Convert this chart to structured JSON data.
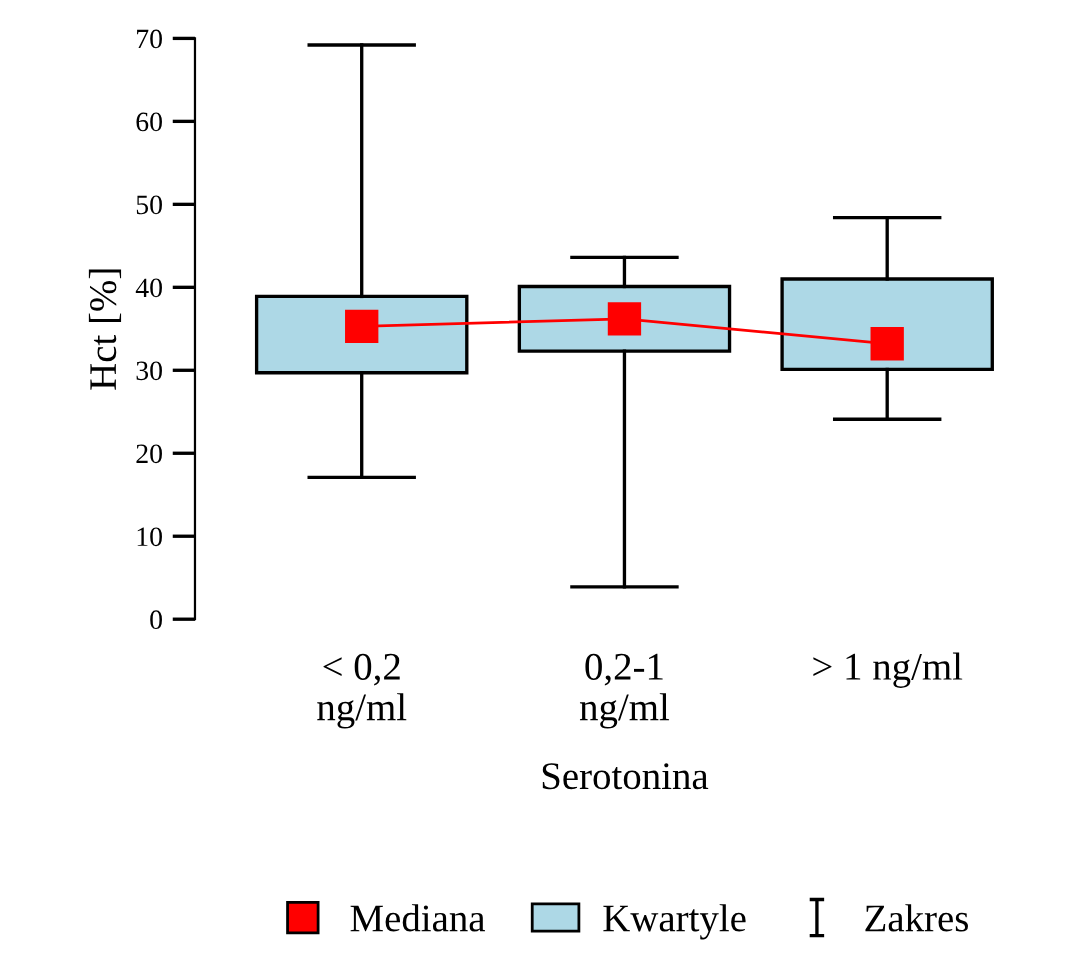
{
  "chart_data": {
    "type": "box",
    "xlabel": "Serotonina",
    "ylabel": "Hct [%]",
    "categories": [
      "< 0,2\nng/ml",
      "0,2-1\nng/ml",
      "> 1 ng/ml"
    ],
    "ylim": [
      0,
      70
    ],
    "yticks": [
      0,
      10,
      20,
      30,
      40,
      50,
      60,
      70
    ],
    "grid": false,
    "legend": "bottom",
    "series": [
      {
        "name": "Mediana",
        "type": "line",
        "color": "#ff0000",
        "marker": "square",
        "values": [
          35.3,
          36.2,
          33.2
        ]
      },
      {
        "name": "Kwartyle",
        "color": "#add8e6",
        "boxes": [
          {
            "low": 17.1,
            "q1": 29.7,
            "q3": 38.9,
            "high": 69.2
          },
          {
            "low": 3.9,
            "q1": 32.3,
            "q3": 40.1,
            "high": 43.6
          },
          {
            "low": 24.1,
            "q1": 30.1,
            "q3": 41.0,
            "high": 48.4
          }
        ]
      }
    ],
    "annotations": [
      "Zakres"
    ]
  }
}
